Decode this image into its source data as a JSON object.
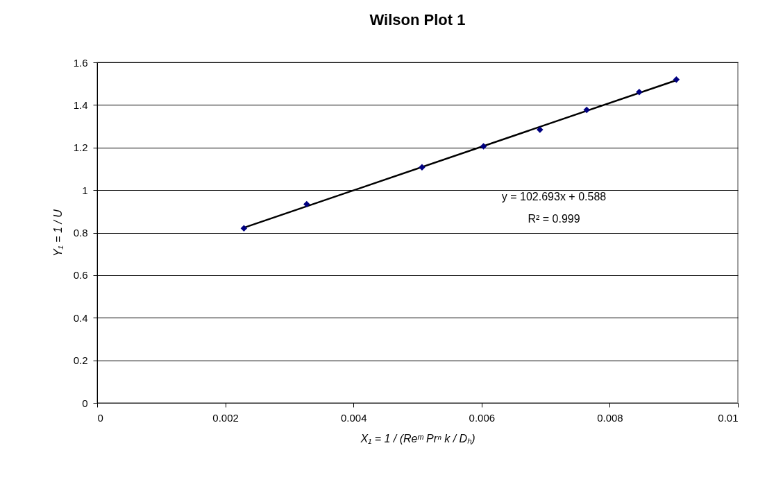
{
  "chart_data": {
    "type": "scatter",
    "title": "Wilson Plot 1",
    "xlabel": "X₁ = 1 / (Reᵐ Prⁿ k / Dₕ)",
    "ylabel": "Y₁ = 1 / U",
    "xlim": [
      0,
      0.01
    ],
    "xticks": [
      0,
      0.002,
      0.004,
      0.006,
      0.008,
      0.01
    ],
    "ylim": [
      0,
      1.6
    ],
    "yticks": [
      0,
      0.2,
      0.4,
      0.6,
      0.8,
      1,
      1.2,
      1.4,
      1.6
    ],
    "grid": "y",
    "marker": "diamond",
    "series": [
      {
        "color": "#000080",
        "x": [
          0.00229,
          0.00327,
          0.00507,
          0.00603,
          0.00691,
          0.00764,
          0.00846,
          0.00904
        ],
        "values": [
          0.82,
          0.934,
          1.107,
          1.206,
          1.284,
          1.377,
          1.461,
          1.519
        ]
      },
      {
        "type": "line",
        "marker": "none",
        "color": "#000000",
        "x": [
          0.00229,
          0.00904
        ],
        "values": [
          0.823,
          1.516
        ]
      }
    ],
    "annotations": [
      "y = 102.693x + 0.588",
      "R² = 0.999"
    ]
  }
}
